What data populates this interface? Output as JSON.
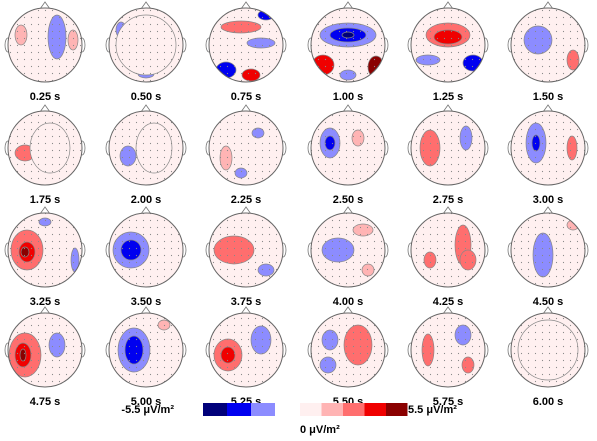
{
  "maps": [
    {
      "label": "0.25 s"
    },
    {
      "label": "0.50 s"
    },
    {
      "label": "0.75 s"
    },
    {
      "label": "1.00 s"
    },
    {
      "label": "1.25 s"
    },
    {
      "label": "1.50 s"
    },
    {
      "label": "1.75 s"
    },
    {
      "label": "2.00 s"
    },
    {
      "label": "2.25 s"
    },
    {
      "label": "2.50 s"
    },
    {
      "label": "2.75 s"
    },
    {
      "label": "3.00 s"
    },
    {
      "label": "3.25 s"
    },
    {
      "label": "3.50 s"
    },
    {
      "label": "3.75 s"
    },
    {
      "label": "4.00 s"
    },
    {
      "label": "4.25 s"
    },
    {
      "label": "4.50 s"
    },
    {
      "label": "4.75 s"
    },
    {
      "label": "5.00 s"
    },
    {
      "label": "5.25 s"
    },
    {
      "label": "5.50 s"
    },
    {
      "label": "5.75 s"
    },
    {
      "label": "6.00 s"
    }
  ],
  "colorbar": {
    "min_label": "-5.5 μV/m²",
    "mid_label": "0 μV/m²",
    "max_label": "5.5 μV/m²",
    "negative_colors": [
      "#00007a",
      "#0000f0",
      "#8c8cff"
    ],
    "positive_colors": [
      "#fff0f0",
      "#ffb4b4",
      "#ff6e6e",
      "#f00000",
      "#8a0000"
    ]
  }
}
